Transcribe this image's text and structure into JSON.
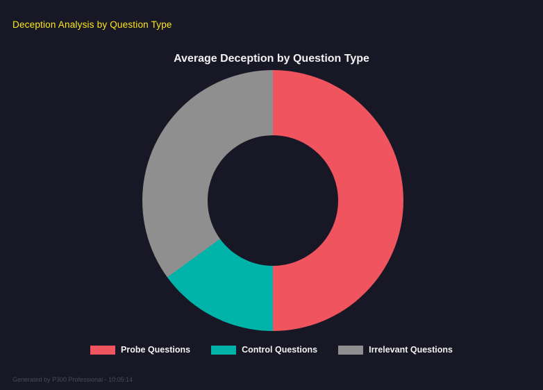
{
  "page": {
    "header": "Deception Analysis by Question Type",
    "footer": "Generated by P300 Professional - 10:05:14"
  },
  "colors": {
    "background": "#171725",
    "header_text": "#ffe91a",
    "title_text": "#f2f2f2",
    "footer_text": "#4c4c58"
  },
  "chart_data": {
    "type": "pie",
    "subtype": "donut",
    "title": "Average Deception by Question Type",
    "categories": [
      "Probe Questions",
      "Control Questions",
      "Irrelevant Questions"
    ],
    "values": [
      50,
      15,
      35
    ],
    "unit": "percent-estimated-from-arc-angles",
    "colors": [
      "#f0545f",
      "#00b3a8",
      "#8f8f8f"
    ],
    "start_angle_deg": 0,
    "direction": "clockwise",
    "inner_radius_ratio": 0.5,
    "legend_position": "bottom",
    "grid": false
  }
}
